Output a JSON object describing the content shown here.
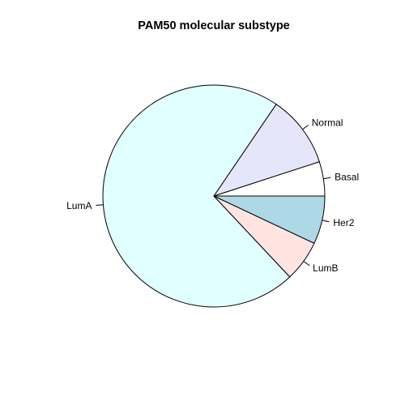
{
  "chart_data": {
    "type": "pie",
    "title": "PAM50 molecular substype",
    "categories": [
      "Basal",
      "Normal",
      "LumA",
      "LumB",
      "Her2"
    ],
    "values": [
      5.0,
      10.5,
      71.5,
      6.0,
      7.0
    ],
    "colors": [
      "#ffffff",
      "#e6e6fa",
      "#e0ffff",
      "#ffe4e1",
      "#add8e6"
    ],
    "start_angle_deg": 0,
    "direction": "counterclockwise",
    "border_color": "#000000"
  }
}
